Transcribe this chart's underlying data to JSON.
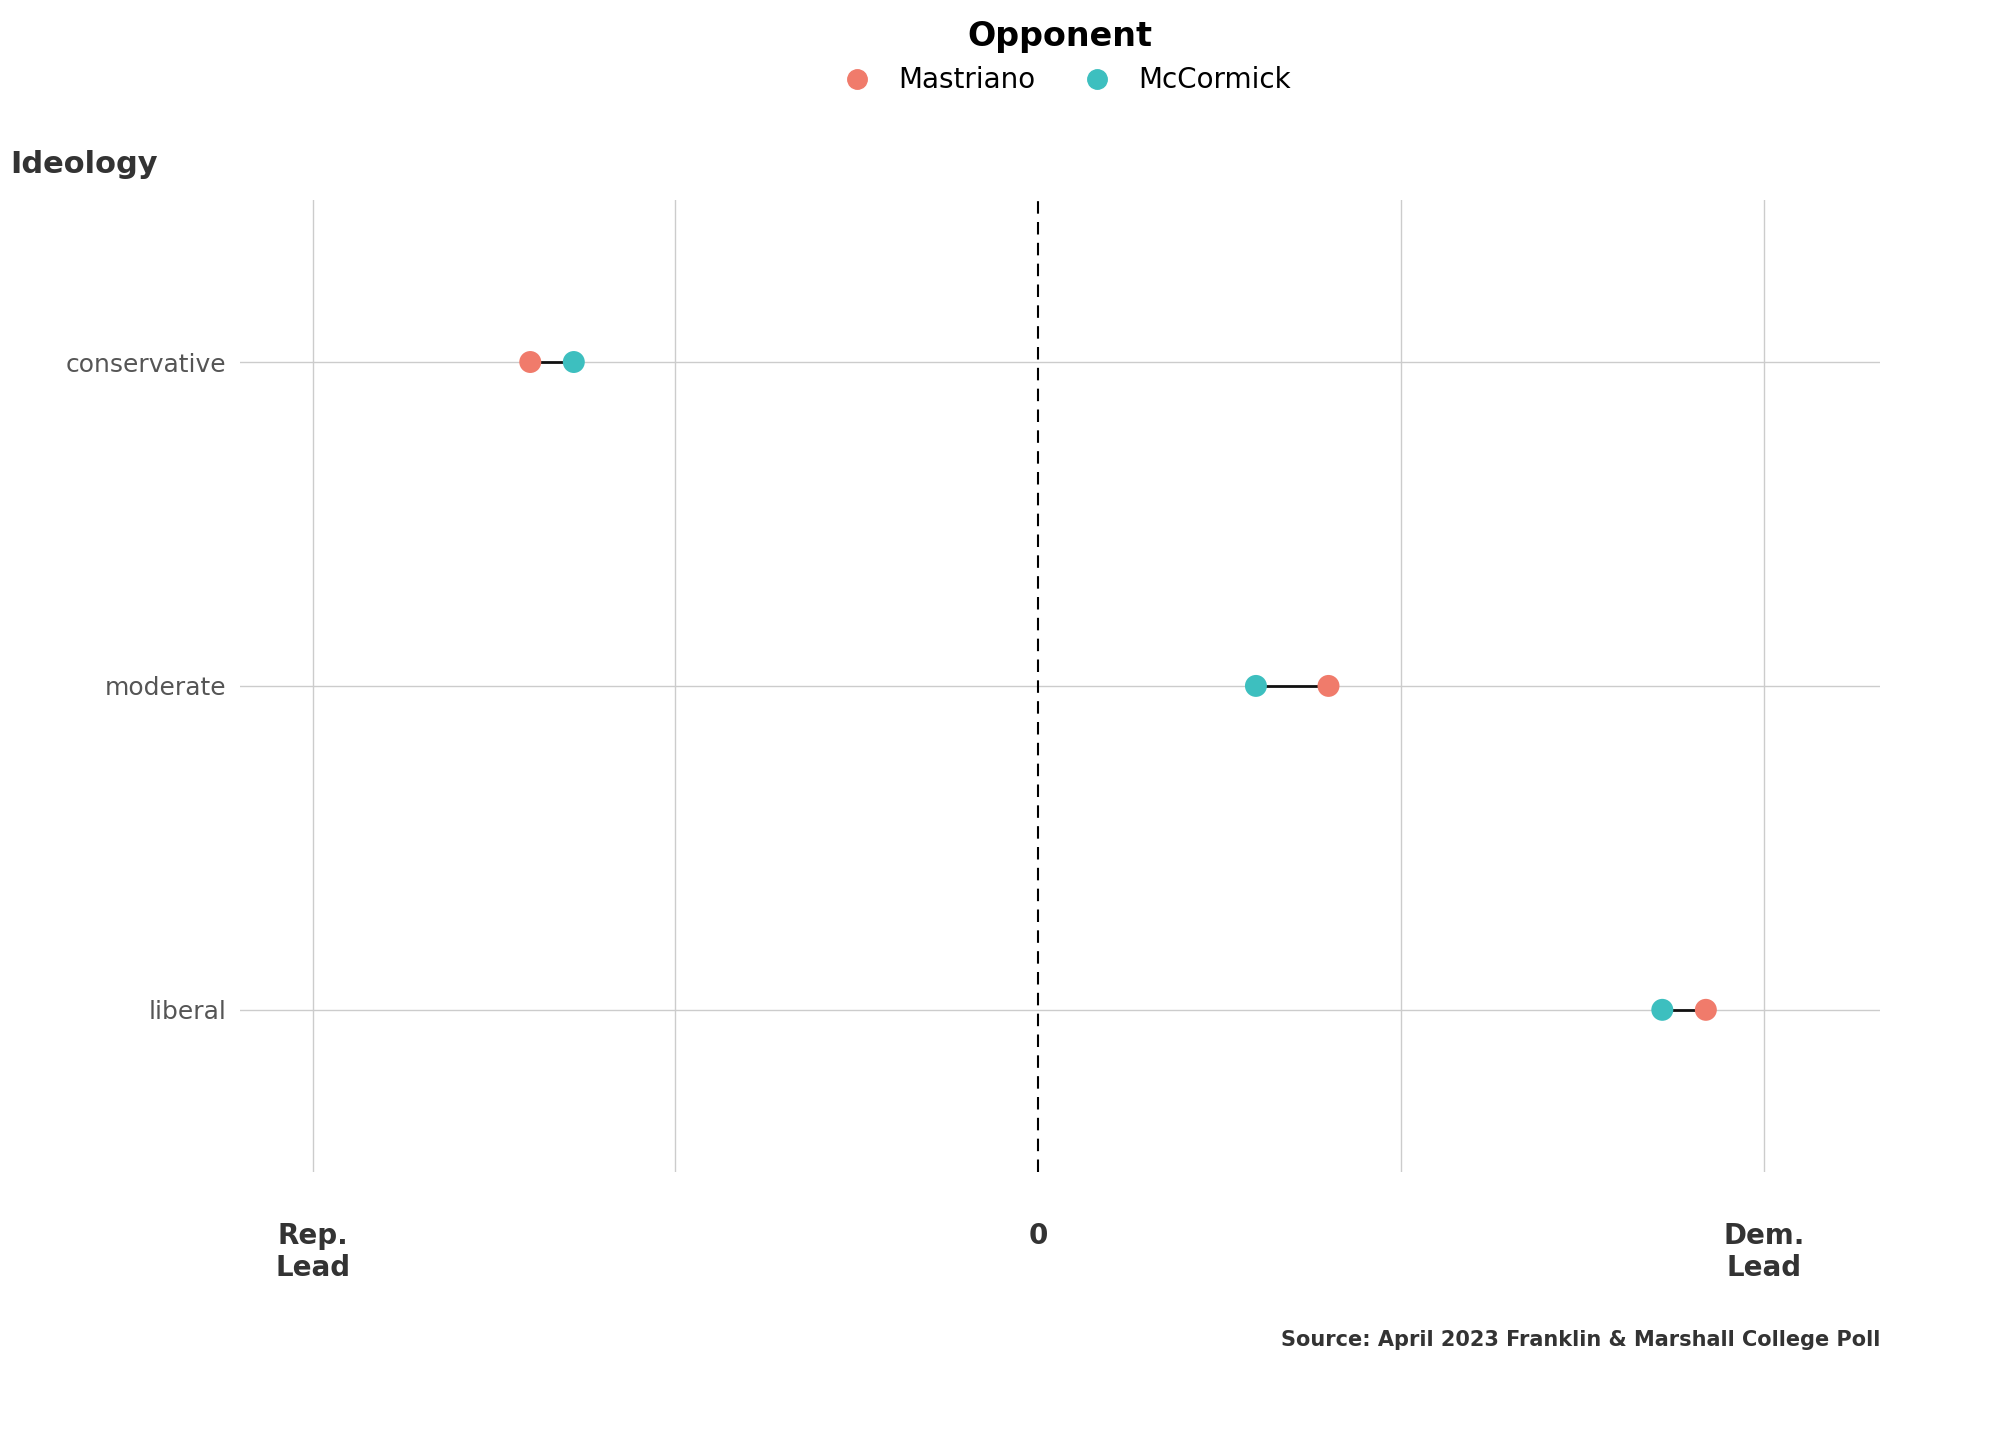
{
  "categories": [
    "conservative",
    "moderate",
    "liberal"
  ],
  "mastriano": [
    -35,
    20,
    46
  ],
  "mccormick": [
    -32,
    15,
    43
  ],
  "mastriano_color": "#F07B6B",
  "mccormick_color": "#3DBFBF",
  "connector_color": "#111111",
  "legend_title": "Opponent",
  "legend_mastriano": "Mastriano",
  "legend_mccormick": "McCormick",
  "xlabel_left": "Rep.\nLead",
  "xlabel_right": "Dem.\nLead",
  "xlabel_center": "0",
  "ylabel_label": "Ideology",
  "xlim": [
    -55,
    58
  ],
  "ylim": [
    -0.5,
    2.5
  ],
  "grid_color": "#CCCCCC",
  "bg_color": "#FFFFFF",
  "text_color": "#555555",
  "source_text": "Source: April 2023 Franklin & Marshall College Poll",
  "marker_size": 250,
  "connector_lw": 2.0,
  "legend_title_fontsize": 24,
  "legend_fontsize": 20,
  "label_fontsize": 20,
  "tick_fontsize": 18,
  "source_fontsize": 15,
  "ideology_fontsize": 22
}
